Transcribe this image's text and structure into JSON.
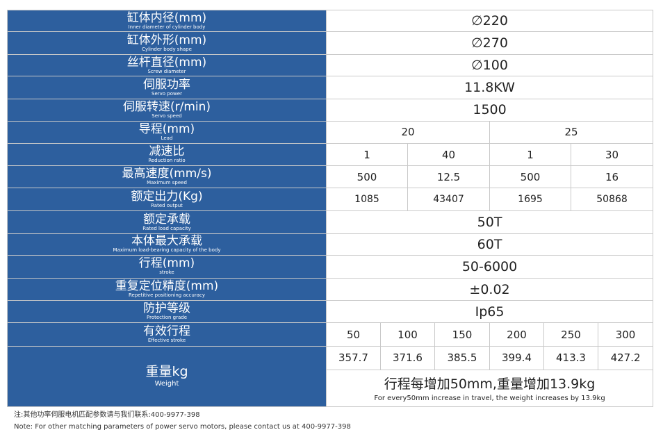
{
  "rows": {
    "inner_diameter": {
      "zh": "缸体内径(mm)",
      "en": "Inner diameter of cylinder body",
      "value": "∅220"
    },
    "body_shape": {
      "zh": "缸体外形(mm)",
      "en": "Cylinder body shape",
      "value": "∅270"
    },
    "screw_diameter": {
      "zh": "丝杆直径(mm)",
      "en": "Screw diameter",
      "value": "∅100"
    },
    "servo_power": {
      "zh": "伺服功率",
      "en": "Servo power",
      "value": "11.8KW"
    },
    "servo_speed": {
      "zh": "伺服转速(r/min)",
      "en": "Servo speed",
      "value": "1500"
    },
    "lead": {
      "zh": "导程(mm)",
      "en": "Lead",
      "values": [
        "20",
        "25"
      ]
    },
    "reduction_ratio": {
      "zh": "减速比",
      "en": "Reduction ratio",
      "values": [
        "1",
        "40",
        "1",
        "30"
      ]
    },
    "max_speed": {
      "zh": "最高速度(mm/s)",
      "en": "Maximum speed",
      "values": [
        "500",
        "12.5",
        "500",
        "16"
      ]
    },
    "rated_output": {
      "zh": "额定出力(Kg)",
      "en": "Rated output",
      "values": [
        "1085",
        "43407",
        "1695",
        "50868"
      ]
    },
    "rated_load": {
      "zh": "额定承载",
      "en": "Rated load capacity",
      "value": "50T"
    },
    "max_load": {
      "zh": "本体最大承载",
      "en": "Maximum load-bearing capacity of the body",
      "value": "60T"
    },
    "stroke": {
      "zh": "行程(mm)",
      "en": "stroke",
      "value": "50-6000"
    },
    "repeat_accuracy": {
      "zh": "重复定位精度(mm)",
      "en": "Repetitive positioning accuracy",
      "value": "±0.02"
    },
    "protection": {
      "zh": "防护等级",
      "en": "Protection grade",
      "value": "Ip65"
    },
    "effective_stroke": {
      "zh": "有效行程",
      "en": "Effective stroke",
      "values": [
        "50",
        "100",
        "150",
        "200",
        "250",
        "300"
      ]
    },
    "weight": {
      "zh": "重量kg",
      "en": "Weight",
      "values": [
        "357.7",
        "371.6",
        "385.5",
        "399.4",
        "413.3",
        "427.2"
      ],
      "note_zh": "行程每增加50mm,重量增加13.9kg",
      "note_en": "For every50mm increase in travel, the weight increases by 13.9kg"
    }
  },
  "footnotes": {
    "zh": "注:其他功率伺服电机匹配参数请与我们联系:400-9977-398",
    "en": "Note: For other matching parameters of power servo motors, please contact us at 400-9977-398"
  },
  "colors": {
    "label_bg": "#2d5f9e",
    "label_text": "#ffffff",
    "border": "#c9c9c9"
  }
}
